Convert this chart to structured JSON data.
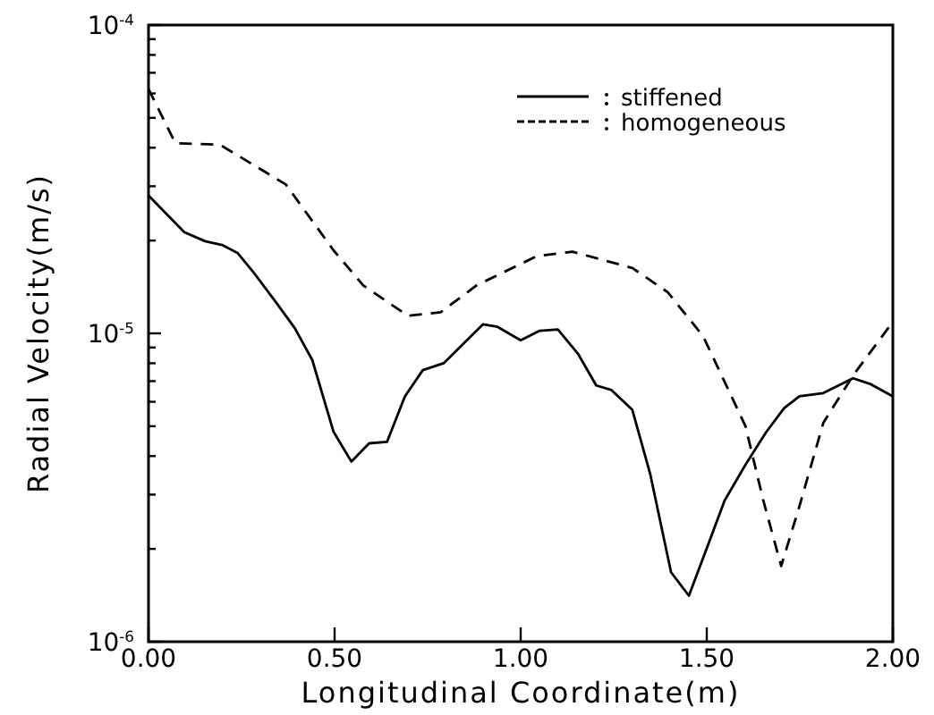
{
  "chart_data": {
    "type": "line",
    "xlabel": "Longitudinal Coordinate(m)",
    "ylabel": "Radial Velocity(m/s)",
    "log": "y",
    "xlim": [
      0,
      2
    ],
    "xticks": [
      {
        "value": 0,
        "label": "0.00"
      },
      {
        "value": 0.5,
        "label": "0.50"
      },
      {
        "value": 1,
        "label": "1.00"
      },
      {
        "value": 1.5,
        "label": "1.50"
      },
      {
        "value": 2,
        "label": "2.00"
      }
    ],
    "ylim": [
      1e-06,
      0.0001
    ],
    "yticks": [
      {
        "value": 1e-06,
        "label": "10$^{-6}$"
      },
      {
        "value": 2e-06,
        "label": null
      },
      {
        "value": 3e-06,
        "label": null
      },
      {
        "value": 4e-06,
        "label": null
      },
      {
        "value": 5e-06,
        "label": null
      },
      {
        "value": 6e-06,
        "label": null
      },
      {
        "value": 7e-06,
        "label": null
      },
      {
        "value": 8e-06,
        "label": null
      },
      {
        "value": 9e-06,
        "label": null
      },
      {
        "value": 1e-05,
        "label": "10$^{-5}$"
      },
      {
        "value": 2e-05,
        "label": null
      },
      {
        "value": 3e-05,
        "label": null
      },
      {
        "value": 4e-05,
        "label": null
      },
      {
        "value": 5e-05,
        "label": null
      },
      {
        "value": 6e-05,
        "label": null
      },
      {
        "value": 7e-05,
        "label": null
      },
      {
        "value": 8e-05,
        "label": null
      },
      {
        "value": 9e-05,
        "label": null
      },
      {
        "value": 0.0001,
        "label": "10$^{-4}$"
      }
    ],
    "grid": false,
    "legend": "top right",
    "series": [
      {
        "name": "stiffened",
        "color": "#000000",
        "line_style": "solid",
        "x": [
          0,
          0.096,
          0.152,
          0.2,
          0.24,
          0.28,
          0.345,
          0.393,
          0.44,
          0.497,
          0.545,
          0.593,
          0.641,
          0.689,
          0.737,
          0.793,
          0.899,
          0.938,
          1.0,
          1.051,
          1.1,
          1.155,
          1.203,
          1.244,
          1.3,
          1.348,
          1.404,
          1.452,
          1.5,
          1.548,
          1.604,
          1.66,
          1.708,
          1.749,
          1.813,
          1.893,
          1.941,
          2.0
        ],
        "values": [
          2.8e-05,
          2.13e-05,
          1.99e-05,
          1.93e-05,
          1.82e-05,
          1.59e-05,
          1.25e-05,
          1.04e-05,
          8.2e-06,
          4.8e-06,
          3.84e-06,
          4.4e-06,
          4.45e-06,
          6.25e-06,
          7.6e-06,
          8e-06,
          1.07e-05,
          1.05e-05,
          9.5e-06,
          1.02e-05,
          1.03e-05,
          8.55e-06,
          6.78e-06,
          6.55e-06,
          5.65e-06,
          3.5e-06,
          1.68e-06,
          1.41e-06,
          2.01e-06,
          2.87e-06,
          3.75e-06,
          4.79e-06,
          5.72e-06,
          6.25e-06,
          6.4e-06,
          7.15e-06,
          6.84e-06,
          6.25e-06
        ]
      },
      {
        "name": "homogeneous",
        "color": "#000000",
        "line_style": "dashed",
        "x": [
          0,
          0.072,
          0.192,
          0.369,
          0.497,
          0.577,
          0.697,
          0.785,
          0.881,
          1.043,
          1.139,
          1.3,
          1.395,
          1.49,
          1.54,
          1.604,
          1.652,
          1.7,
          1.749,
          1.813,
          1.893,
          2.0
        ],
        "values": [
          6.2e-05,
          4.14e-05,
          4.09e-05,
          3.04e-05,
          1.86e-05,
          1.43e-05,
          1.14e-05,
          1.17e-05,
          1.43e-05,
          1.78e-05,
          1.84e-05,
          1.63e-05,
          1.36e-05,
          9.8e-06,
          7.3e-06,
          5e-06,
          2.87e-06,
          1.76e-06,
          2.75e-06,
          5.12e-06,
          7.3e-06,
          1.09e-05
        ]
      }
    ]
  }
}
